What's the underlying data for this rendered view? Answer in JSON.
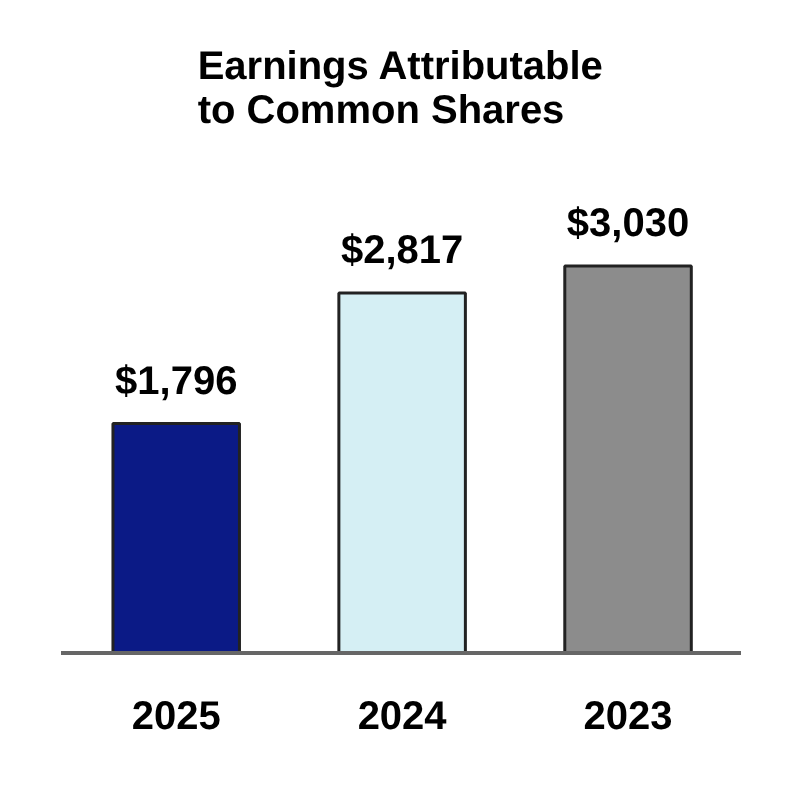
{
  "chart_data": {
    "type": "bar",
    "title": "Earnings Attributable\nto Common Shares",
    "categories": [
      "2025",
      "2024",
      "2023"
    ],
    "values": [
      1796,
      2817,
      3030
    ],
    "colors": [
      "#0b1a86",
      "#d5eff4",
      "#8c8c8c"
    ],
    "value_labels": [
      "$1,796",
      "$2,817",
      "$3,030"
    ],
    "grid": false,
    "tick_labels": "x"
  }
}
